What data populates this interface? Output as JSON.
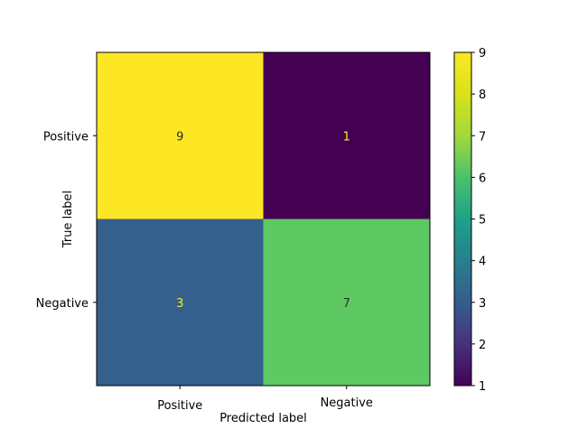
{
  "chart_data": {
    "type": "heatmap",
    "title": "",
    "xlabel": "Predicted label",
    "ylabel": "True label",
    "x_categories": [
      "Positive",
      "Negative"
    ],
    "y_categories": [
      "Positive",
      "Negative"
    ],
    "values": [
      [
        9,
        1
      ],
      [
        3,
        7
      ]
    ],
    "colormap": "viridis",
    "colorbar": {
      "range": [
        1,
        9
      ],
      "ticks": [
        "1",
        "2",
        "3",
        "4",
        "5",
        "6",
        "7",
        "8",
        "9"
      ]
    },
    "cell_colors": {
      "9": "#fde725",
      "7": "#5ec962",
      "3": "#355f8d",
      "1": "#440154"
    },
    "text_colors": {
      "on_light": "#2b2b2b",
      "on_dark": "#fde725"
    },
    "grid": false
  }
}
